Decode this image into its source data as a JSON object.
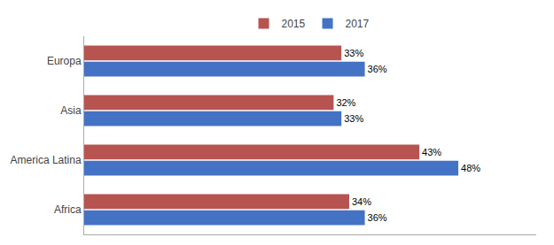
{
  "chart_data": {
    "type": "bar",
    "orientation": "horizontal",
    "categories": [
      "Africa",
      "America Latina",
      "Asia",
      "Europa"
    ],
    "series": [
      {
        "name": "2015",
        "color": "#B85450",
        "values": [
          34,
          43,
          32,
          33
        ],
        "value_labels": [
          "34%",
          "43%",
          "32%",
          "33%"
        ]
      },
      {
        "name": "2017",
        "color": "#4472C4",
        "values": [
          36,
          48,
          33,
          36
        ],
        "value_labels": [
          "36%",
          "48%",
          "33%",
          "36%"
        ]
      }
    ],
    "xlim": [
      0,
      58
    ],
    "data_labels": true,
    "tick_labels": "y",
    "grid": false,
    "legend": "top"
  }
}
